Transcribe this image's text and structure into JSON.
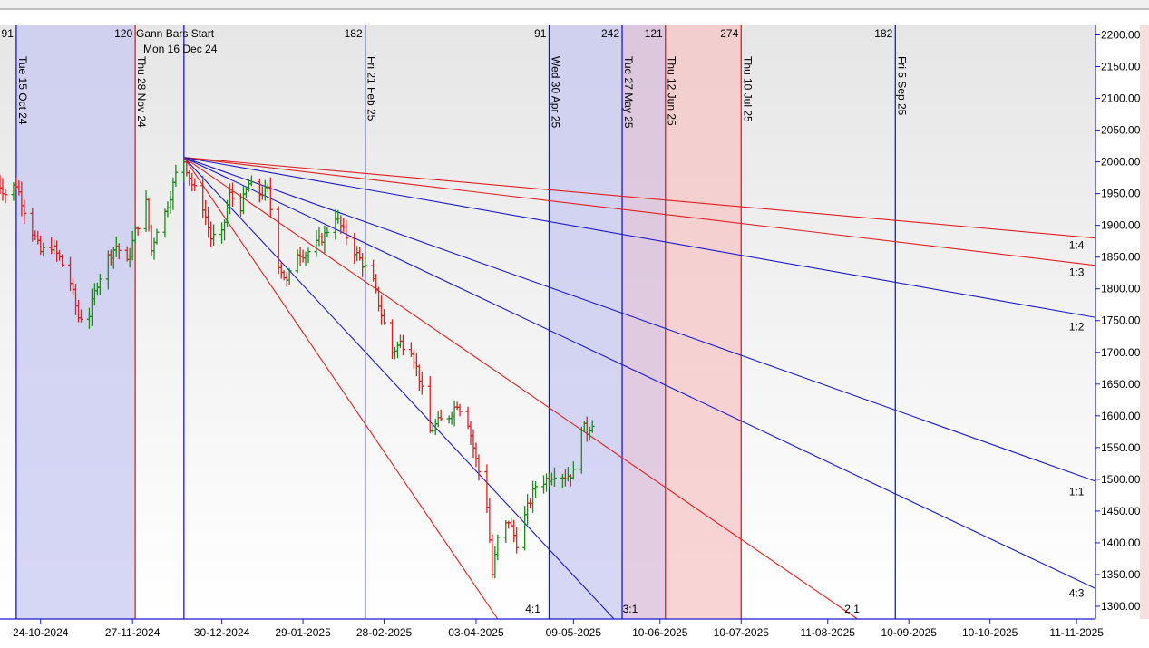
{
  "chart_data": {
    "type": "ohlc-bar",
    "title": "",
    "annotation": {
      "line1": "Gann Bars Start",
      "line2": "Mon 16 Dec 24"
    },
    "ylim": [
      1280,
      2215
    ],
    "y_ticks": [
      1300,
      1350,
      1400,
      1450,
      1500,
      1550,
      1600,
      1650,
      1700,
      1750,
      1800,
      1850,
      1900,
      1950,
      2000,
      2050,
      2100,
      2150,
      2200
    ],
    "y_tick_labels": [
      "1300.00",
      "1350.00",
      "1400.00",
      "1450.00",
      "1500.00",
      "1550.00",
      "1600.00",
      "1650.00",
      "1700.00",
      "1750.00",
      "1800.00",
      "1850.00",
      "1900.00",
      "1950.00",
      "2000.00",
      "2050.00",
      "2100.00",
      "2150.00",
      "2200.00"
    ],
    "x_domain": [
      "2024-10-09",
      "2025-11-18"
    ],
    "x_ticks": [
      "2024-10-24",
      "2024-11-27",
      "2024-12-30",
      "2025-01-29",
      "2025-02-28",
      "2025-04-03",
      "2025-05-09",
      "2025-06-10",
      "2025-07-10",
      "2025-08-11",
      "2025-09-10",
      "2025-10-10",
      "2025-11-11"
    ],
    "x_tick_labels": [
      "24-10-2024",
      "27-11-2024",
      "30-12-2024",
      "29-01-2025",
      "28-02-2025",
      "03-04-2025",
      "09-05-2025",
      "10-06-2025",
      "10-07-2025",
      "11-08-2025",
      "10-09-2025",
      "10-10-2025",
      "11-11-2025"
    ],
    "shaded_regions": [
      {
        "from": "2024-10-15",
        "to": "2024-11-28",
        "color": "#c8c8f2"
      },
      {
        "from": "2025-04-30",
        "to": "2025-05-27",
        "color": "#c8c8f2"
      },
      {
        "from": "2025-05-27",
        "to": "2025-06-12",
        "color": "#d8bcd8"
      },
      {
        "from": "2025-06-12",
        "to": "2025-07-10",
        "color": "#f5c6c6"
      }
    ],
    "vertical_lines": [
      {
        "date": "2024-10-15",
        "label": "Tue 15 Oct 24",
        "count": "91",
        "color": "#1a1acc"
      },
      {
        "date": "2024-11-28",
        "label": "Thu 28 Nov 24",
        "count": "120",
        "color": "#e02020"
      },
      {
        "date": "2024-12-16",
        "label": "",
        "count": "",
        "color": "#1a1acc"
      },
      {
        "date": "2025-02-21",
        "label": "Fri 21 Feb 25",
        "count": "182",
        "color": "#1a1acc"
      },
      {
        "date": "2025-04-30",
        "label": "Wed 30 Apr 25",
        "count": "91",
        "color": "#1a1acc"
      },
      {
        "date": "2025-05-27",
        "label": "Tue 27 May 25",
        "count": "242",
        "color": "#1a1acc"
      },
      {
        "date": "2025-06-12",
        "label": "Thu 12 Jun 25",
        "count": "121",
        "color": "#e02020"
      },
      {
        "date": "2025-07-10",
        "label": "Thu 10 Jul 25",
        "count": "274",
        "color": "#e02020"
      },
      {
        "date": "2025-09-05",
        "label": "Fri 5 Sep 25",
        "count": "182",
        "color": "#1a1acc"
      }
    ],
    "gann_origin": {
      "date": "2024-12-16",
      "price": 2007
    },
    "gann_lines": [
      {
        "label": "1:4",
        "end_date": "2025-11-18",
        "end_price": 1880,
        "color": "#e02020",
        "label_date": "2025-11-11",
        "label_price": 1863
      },
      {
        "label": "1:3",
        "end_date": "2025-11-18",
        "end_price": 1837,
        "color": "#e02020",
        "label_date": "2025-11-11",
        "label_price": 1820
      },
      {
        "label": "1:2",
        "end_date": "2025-11-18",
        "end_price": 1755,
        "color": "#1a1acc",
        "label_date": "2025-11-11",
        "label_price": 1735
      },
      {
        "label": "1:1",
        "end_date": "2025-11-18",
        "end_price": 1497,
        "color": "#1a1acc",
        "label_date": "2025-11-11",
        "label_price": 1475
      },
      {
        "label": "4:3",
        "end_date": "2025-11-18",
        "end_price": 1328,
        "color": "#1a1acc",
        "label_date": "2025-11-11",
        "label_price": 1315
      },
      {
        "label": "2:1",
        "end_date": "2025-08-22",
        "end_price": 1280,
        "color": "#e02020",
        "label_date": "2025-08-20",
        "label_price": 1290
      },
      {
        "label": "3:1",
        "end_date": "2025-05-24",
        "end_price": 1280,
        "color": "#1a1acc",
        "label_date": "2025-05-30",
        "label_price": 1290
      },
      {
        "label": "4:1",
        "end_date": "2025-04-11",
        "end_price": 1280,
        "color": "#e02020",
        "label_date": "2025-04-24",
        "label_price": 1290
      }
    ],
    "price_path": [
      [
        "2024-10-08",
        1970
      ],
      [
        "2024-10-11",
        1950
      ],
      [
        "2024-10-15",
        1965
      ],
      [
        "2024-10-18",
        1925
      ],
      [
        "2024-10-21",
        1890
      ],
      [
        "2024-10-24",
        1858
      ],
      [
        "2024-10-28",
        1868
      ],
      [
        "2024-10-31",
        1848
      ],
      [
        "2024-11-04",
        1810
      ],
      [
        "2024-11-07",
        1755
      ],
      [
        "2024-11-11",
        1760
      ],
      [
        "2024-11-14",
        1810
      ],
      [
        "2024-11-18",
        1850
      ],
      [
        "2024-11-21",
        1868
      ],
      [
        "2024-11-25",
        1840
      ],
      [
        "2024-11-28",
        1890
      ],
      [
        "2024-12-02",
        1935
      ],
      [
        "2024-12-04",
        1860
      ],
      [
        "2024-12-06",
        1895
      ],
      [
        "2024-12-09",
        1920
      ],
      [
        "2024-12-11",
        1948
      ],
      [
        "2024-12-13",
        1980
      ],
      [
        "2024-12-16",
        2002
      ],
      [
        "2024-12-19",
        1965
      ],
      [
        "2024-12-23",
        1930
      ],
      [
        "2024-12-26",
        1880
      ],
      [
        "2024-12-30",
        1885
      ],
      [
        "2025-01-02",
        1948
      ],
      [
        "2025-01-06",
        1930
      ],
      [
        "2025-01-09",
        1965
      ],
      [
        "2025-01-13",
        1950
      ],
      [
        "2025-01-16",
        1955
      ],
      [
        "2025-01-20",
        1840
      ],
      [
        "2025-01-23",
        1810
      ],
      [
        "2025-01-27",
        1858
      ],
      [
        "2025-01-30",
        1855
      ],
      [
        "2025-02-03",
        1870
      ],
      [
        "2025-02-06",
        1885
      ],
      [
        "2025-02-10",
        1915
      ],
      [
        "2025-02-13",
        1890
      ],
      [
        "2025-02-17",
        1860
      ],
      [
        "2025-02-20",
        1840
      ],
      [
        "2025-02-24",
        1810
      ],
      [
        "2025-02-27",
        1760
      ],
      [
        "2025-03-03",
        1700
      ],
      [
        "2025-03-06",
        1715
      ],
      [
        "2025-03-10",
        1705
      ],
      [
        "2025-03-13",
        1660
      ],
      [
        "2025-03-17",
        1575
      ],
      [
        "2025-03-20",
        1590
      ],
      [
        "2025-03-24",
        1600
      ],
      [
        "2025-03-27",
        1620
      ],
      [
        "2025-03-31",
        1590
      ],
      [
        "2025-04-03",
        1530
      ],
      [
        "2025-04-07",
        1460
      ],
      [
        "2025-04-09",
        1350
      ],
      [
        "2025-04-11",
        1405
      ],
      [
        "2025-04-15",
        1435
      ],
      [
        "2025-04-18",
        1400
      ],
      [
        "2025-04-22",
        1455
      ],
      [
        "2025-04-25",
        1490
      ],
      [
        "2025-04-29",
        1500
      ],
      [
        "2025-05-02",
        1510
      ],
      [
        "2025-05-06",
        1505
      ],
      [
        "2025-05-09",
        1510
      ],
      [
        "2025-05-12",
        1585
      ],
      [
        "2025-05-14",
        1575
      ],
      [
        "2025-05-16",
        1590
      ]
    ],
    "line_color_up": "#1a8a1a",
    "line_color_down": "#e02020"
  }
}
